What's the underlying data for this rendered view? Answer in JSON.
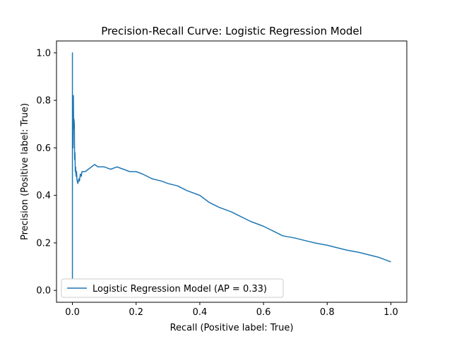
{
  "chart_data": {
    "type": "line",
    "title": "Precision-Recall Curve: Logistic Regression Model",
    "xlabel": "Recall (Positive label: True)",
    "ylabel": "Precision (Positive label: True)",
    "xlim": [
      -0.05,
      1.05
    ],
    "ylim": [
      -0.05,
      1.05
    ],
    "xticks": [
      0.0,
      0.2,
      0.4,
      0.6,
      0.8,
      1.0
    ],
    "xtick_labels": [
      "0.0",
      "0.2",
      "0.4",
      "0.6",
      "0.8",
      "1.0"
    ],
    "yticks": [
      0.0,
      0.2,
      0.4,
      0.6,
      0.8,
      1.0
    ],
    "ytick_labels": [
      "0.0",
      "0.2",
      "0.4",
      "0.6",
      "0.8",
      "1.0"
    ],
    "grid": false,
    "legend_position": "lower-left",
    "series": [
      {
        "name": "Logistic Regression Model (AP = 0.33)",
        "color": "#1f77b4",
        "x": [
          0.0,
          0.0,
          0.0,
          0.0,
          0.0,
          0.001,
          0.002,
          0.003,
          0.004,
          0.005,
          0.006,
          0.007,
          0.008,
          0.009,
          0.01,
          0.011,
          0.012,
          0.013,
          0.014,
          0.015,
          0.017,
          0.02,
          0.022,
          0.025,
          0.028,
          0.03,
          0.035,
          0.04,
          0.05,
          0.06,
          0.07,
          0.08,
          0.1,
          0.12,
          0.14,
          0.16,
          0.18,
          0.2,
          0.22,
          0.25,
          0.28,
          0.3,
          0.33,
          0.36,
          0.4,
          0.43,
          0.46,
          0.5,
          0.53,
          0.56,
          0.6,
          0.63,
          0.66,
          0.7,
          0.73,
          0.76,
          0.8,
          0.83,
          0.86,
          0.9,
          0.93,
          0.96,
          1.0
        ],
        "y": [
          0.05,
          0.33,
          0.7,
          1.0,
          0.55,
          0.8,
          0.6,
          0.82,
          0.68,
          0.72,
          0.7,
          0.55,
          0.58,
          0.5,
          0.52,
          0.49,
          0.48,
          0.5,
          0.47,
          0.46,
          0.45,
          0.47,
          0.46,
          0.49,
          0.48,
          0.5,
          0.5,
          0.5,
          0.51,
          0.52,
          0.53,
          0.52,
          0.52,
          0.51,
          0.52,
          0.51,
          0.5,
          0.5,
          0.49,
          0.47,
          0.46,
          0.45,
          0.44,
          0.42,
          0.4,
          0.37,
          0.35,
          0.33,
          0.31,
          0.29,
          0.27,
          0.25,
          0.23,
          0.22,
          0.21,
          0.2,
          0.19,
          0.18,
          0.17,
          0.16,
          0.15,
          0.14,
          0.12
        ]
      }
    ]
  }
}
